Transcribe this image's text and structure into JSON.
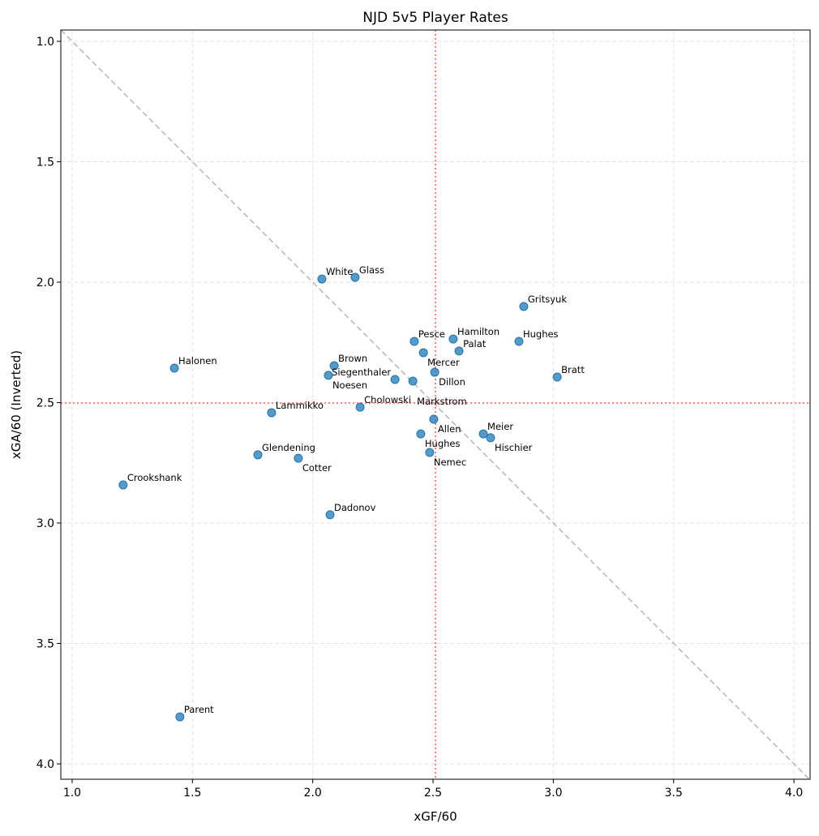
{
  "chart_data": {
    "type": "scatter",
    "title": "NJD 5v5 Player Rates",
    "xlabel": "xGF/60",
    "ylabel": "xGA/60 (Inverted)",
    "xlim": [
      0.953,
      4.067
    ],
    "ylim": [
      4.064,
      0.953
    ],
    "y_inverted": true,
    "grid": true,
    "xticks": [
      "1.0",
      "1.5",
      "2.0",
      "2.5",
      "3.0",
      "3.5",
      "4.0"
    ],
    "yticks": [
      "1.0",
      "1.5",
      "2.0",
      "2.5",
      "3.0",
      "3.5",
      "4.0"
    ],
    "point_color": "#1f77b4",
    "reference_lines": {
      "mean_x": 2.51,
      "mean_y": 2.502,
      "mean_color": "#ff7f7f",
      "diagonal": "y = x",
      "diagonal_color": "#aaaaaa"
    },
    "points": [
      {
        "label": "White",
        "x": 2.038,
        "y": 1.987
      },
      {
        "label": "Glass",
        "x": 2.176,
        "y": 1.98
      },
      {
        "label": "Gritsyuk",
        "x": 2.877,
        "y": 2.101
      },
      {
        "label": "Halonen",
        "x": 1.425,
        "y": 2.357
      },
      {
        "label": "Pesce",
        "x": 2.422,
        "y": 2.246
      },
      {
        "label": "Hamilton",
        "x": 2.584,
        "y": 2.236
      },
      {
        "label": "Hughes",
        "x": 2.857,
        "y": 2.246
      },
      {
        "label": "Mercer",
        "x": 2.46,
        "y": 2.293
      },
      {
        "label": "Palat",
        "x": 2.608,
        "y": 2.286
      },
      {
        "label": "Brown",
        "x": 2.089,
        "y": 2.347
      },
      {
        "label": "Noesen",
        "x": 2.065,
        "y": 2.387
      },
      {
        "label": "Dillon",
        "x": 2.507,
        "y": 2.374
      },
      {
        "label": "Siegenthaler",
        "x": 2.342,
        "y": 2.404
      },
      {
        "label": "Markstrom",
        "x": 2.416,
        "y": 2.411
      },
      {
        "label": "Bratt",
        "x": 3.016,
        "y": 2.394
      },
      {
        "label": "Cholowski",
        "x": 2.197,
        "y": 2.519
      },
      {
        "label": "Lammikko",
        "x": 1.829,
        "y": 2.542
      },
      {
        "label": "Allen",
        "x": 2.503,
        "y": 2.569
      },
      {
        "label": "Hughes",
        "x": 2.449,
        "y": 2.63
      },
      {
        "label": "Meier",
        "x": 2.709,
        "y": 2.63
      },
      {
        "label": "Hischier",
        "x": 2.739,
        "y": 2.646
      },
      {
        "label": "Glendening",
        "x": 1.772,
        "y": 2.717
      },
      {
        "label": "Cotter",
        "x": 1.94,
        "y": 2.731
      },
      {
        "label": "Nemec",
        "x": 2.486,
        "y": 2.707
      },
      {
        "label": "Crookshank",
        "x": 1.212,
        "y": 2.842
      },
      {
        "label": "Dadonov",
        "x": 2.072,
        "y": 2.966
      },
      {
        "label": "Parent",
        "x": 1.448,
        "y": 3.805
      }
    ]
  }
}
